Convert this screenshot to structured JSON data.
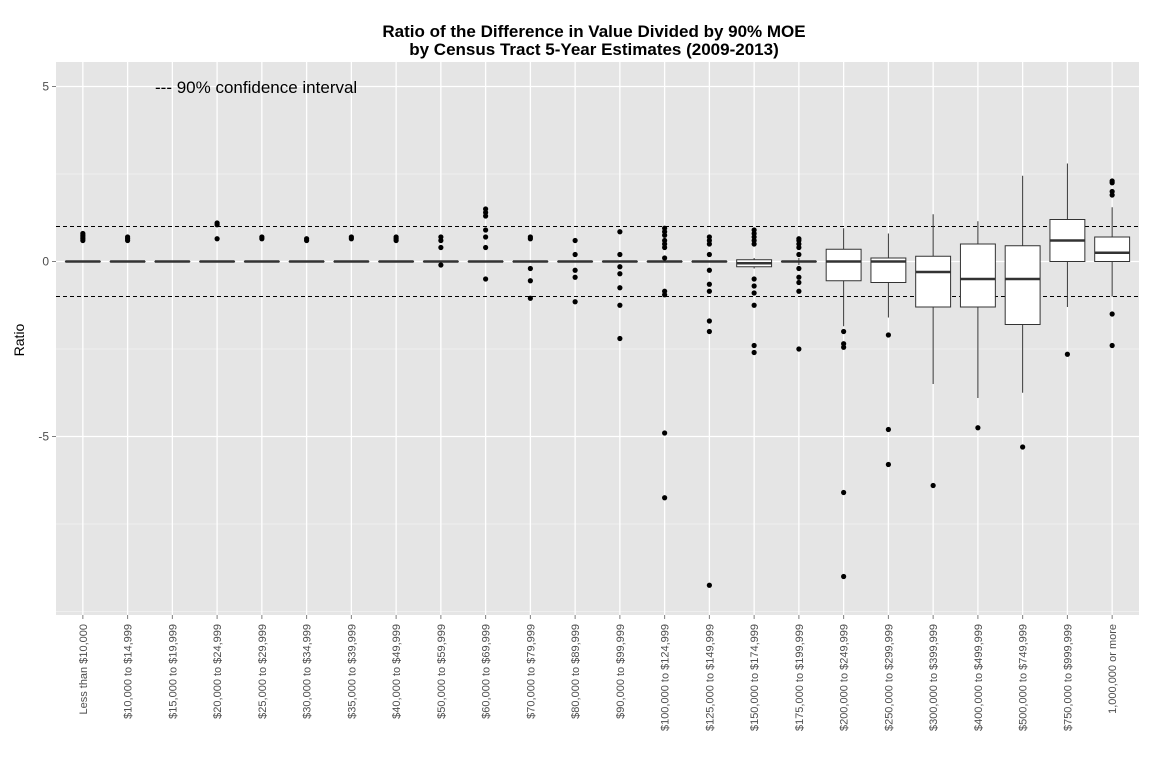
{
  "chart_data": {
    "type": "box",
    "title": "Ratio of the Difference in Value Divided by 90% MOE",
    "subtitle": "by Census Tract 5-Year Estimates (2009-2013)",
    "xlabel": "",
    "ylabel": "Ratio",
    "ylim": [
      -10.1,
      5.7
    ],
    "yticks": [
      5,
      0,
      -5
    ],
    "grid": true,
    "annotation": "--- 90% confidence interval",
    "reference_lines": [
      1,
      -1
    ],
    "categories": [
      "Less than $10,000",
      "$10,000 to $14,999",
      "$15,000 to $19,999",
      "$20,000 to $24,999",
      "$25,000 to $29,999",
      "$30,000 to $34,999",
      "$35,000 to $39,999",
      "$40,000 to $49,999",
      "$50,000 to $59,999",
      "$60,000 to $69,999",
      "$70,000 to $79,999",
      "$80,000 to $89,999",
      "$90,000 to $99,999",
      "$100,000 to $124,999",
      "$125,000 to $149,999",
      "$150,000 to $174,999",
      "$175,000 to $199,999",
      "$200,000 to $249,999",
      "$250,000 to $299,999",
      "$300,000 to $399,999",
      "$400,000 to $499,999",
      "$500,000 to $749,999",
      "$750,000 to $999,999",
      "1,000,000 or more"
    ],
    "boxes": [
      {
        "q1": 0,
        "median": 0,
        "q3": 0,
        "whisker_low": 0,
        "whisker_high": 0,
        "outliers": [
          0.6,
          0.65,
          0.7,
          0.75,
          0.8
        ]
      },
      {
        "q1": 0,
        "median": 0,
        "q3": 0,
        "whisker_low": 0,
        "whisker_high": 0,
        "outliers": [
          0.6,
          0.65,
          0.7
        ]
      },
      {
        "q1": 0,
        "median": 0,
        "q3": 0,
        "whisker_low": 0,
        "whisker_high": 0,
        "outliers": []
      },
      {
        "q1": 0,
        "median": 0,
        "q3": 0,
        "whisker_low": 0,
        "whisker_high": 0,
        "outliers": [
          0.65,
          1.05,
          1.1
        ]
      },
      {
        "q1": 0,
        "median": 0,
        "q3": 0,
        "whisker_low": 0,
        "whisker_high": 0,
        "outliers": [
          0.65,
          0.7
        ]
      },
      {
        "q1": 0,
        "median": 0,
        "q3": 0,
        "whisker_low": 0,
        "whisker_high": 0,
        "outliers": [
          0.6,
          0.65
        ]
      },
      {
        "q1": 0,
        "median": 0,
        "q3": 0,
        "whisker_low": 0,
        "whisker_high": 0,
        "outliers": [
          0.65,
          0.7
        ]
      },
      {
        "q1": 0,
        "median": 0,
        "q3": 0,
        "whisker_low": 0,
        "whisker_high": 0,
        "outliers": [
          0.6,
          0.65,
          0.7
        ]
      },
      {
        "q1": 0,
        "median": 0,
        "q3": 0,
        "whisker_low": 0,
        "whisker_high": 0,
        "outliers": [
          -0.1,
          0.4,
          0.6,
          0.7
        ]
      },
      {
        "q1": 0,
        "median": 0,
        "q3": 0,
        "whisker_low": 0,
        "whisker_high": 0,
        "outliers": [
          -0.5,
          0.4,
          0.7,
          0.9,
          1.3,
          1.4,
          1.5
        ]
      },
      {
        "q1": 0,
        "median": 0,
        "q3": 0,
        "whisker_low": 0,
        "whisker_high": 0,
        "outliers": [
          -1.05,
          -0.55,
          -0.2,
          0.65,
          0.7
        ]
      },
      {
        "q1": 0,
        "median": 0,
        "q3": 0,
        "whisker_low": 0,
        "whisker_high": 0,
        "outliers": [
          -1.15,
          -0.45,
          -0.25,
          0.2,
          0.6
        ]
      },
      {
        "q1": 0,
        "median": 0,
        "q3": 0,
        "whisker_low": 0,
        "whisker_high": 0,
        "outliers": [
          -2.2,
          -1.25,
          -0.75,
          -0.35,
          -0.15,
          0.2,
          0.85
        ]
      },
      {
        "q1": 0,
        "median": 0,
        "q3": 0,
        "whisker_low": 0,
        "whisker_high": 0,
        "outliers": [
          -6.75,
          -4.9,
          -0.95,
          -0.85,
          0.1,
          0.4,
          0.5,
          0.6,
          0.75,
          0.85,
          0.95
        ]
      },
      {
        "q1": 0,
        "median": 0,
        "q3": 0,
        "whisker_low": 0,
        "whisker_high": 0,
        "outliers": [
          -9.25,
          -2.0,
          -1.7,
          -0.85,
          -0.65,
          -0.25,
          0.2,
          0.5,
          0.6,
          0.7
        ]
      },
      {
        "q1": -0.15,
        "median": -0.05,
        "q3": 0.05,
        "whisker_low": -0.2,
        "whisker_high": 0.1,
        "outliers": [
          -2.6,
          -2.4,
          -1.25,
          -0.9,
          -0.7,
          -0.5,
          0.5,
          0.6,
          0.7,
          0.8,
          0.9
        ]
      },
      {
        "q1": 0,
        "median": 0,
        "q3": 0,
        "whisker_low": -0.1,
        "whisker_high": 0.1,
        "outliers": [
          -2.5,
          -0.85,
          -0.6,
          -0.45,
          -0.2,
          0.2,
          0.4,
          0.5,
          0.6,
          0.65
        ]
      },
      {
        "q1": -0.55,
        "median": 0,
        "q3": 0.35,
        "whisker_low": -1.85,
        "whisker_high": 0.95,
        "outliers": [
          -9.0,
          -6.6,
          -2.45,
          -2.35,
          -2.0
        ]
      },
      {
        "q1": -0.6,
        "median": 0,
        "q3": 0.1,
        "whisker_low": -1.6,
        "whisker_high": 0.8,
        "outliers": [
          -5.8,
          -4.8,
          -2.1
        ]
      },
      {
        "q1": -1.3,
        "median": -0.3,
        "q3": 0.15,
        "whisker_low": -3.5,
        "whisker_high": 1.35,
        "outliers": [
          -6.4
        ]
      },
      {
        "q1": -1.3,
        "median": -0.5,
        "q3": 0.5,
        "whisker_low": -3.9,
        "whisker_high": 1.15,
        "outliers": [
          -4.75
        ]
      },
      {
        "q1": -1.8,
        "median": -0.5,
        "q3": 0.45,
        "whisker_low": -3.75,
        "whisker_high": 2.45,
        "outliers": [
          -5.3
        ]
      },
      {
        "q1": 0,
        "median": 0.6,
        "q3": 1.2,
        "whisker_low": -1.3,
        "whisker_high": 2.8,
        "outliers": [
          -2.65
        ]
      },
      {
        "q1": 0,
        "median": 0.25,
        "q3": 0.7,
        "whisker_low": -1.0,
        "whisker_high": 1.55,
        "outliers": [
          -2.4,
          -1.5,
          1.9,
          2.0,
          2.25,
          2.3
        ]
      }
    ]
  }
}
